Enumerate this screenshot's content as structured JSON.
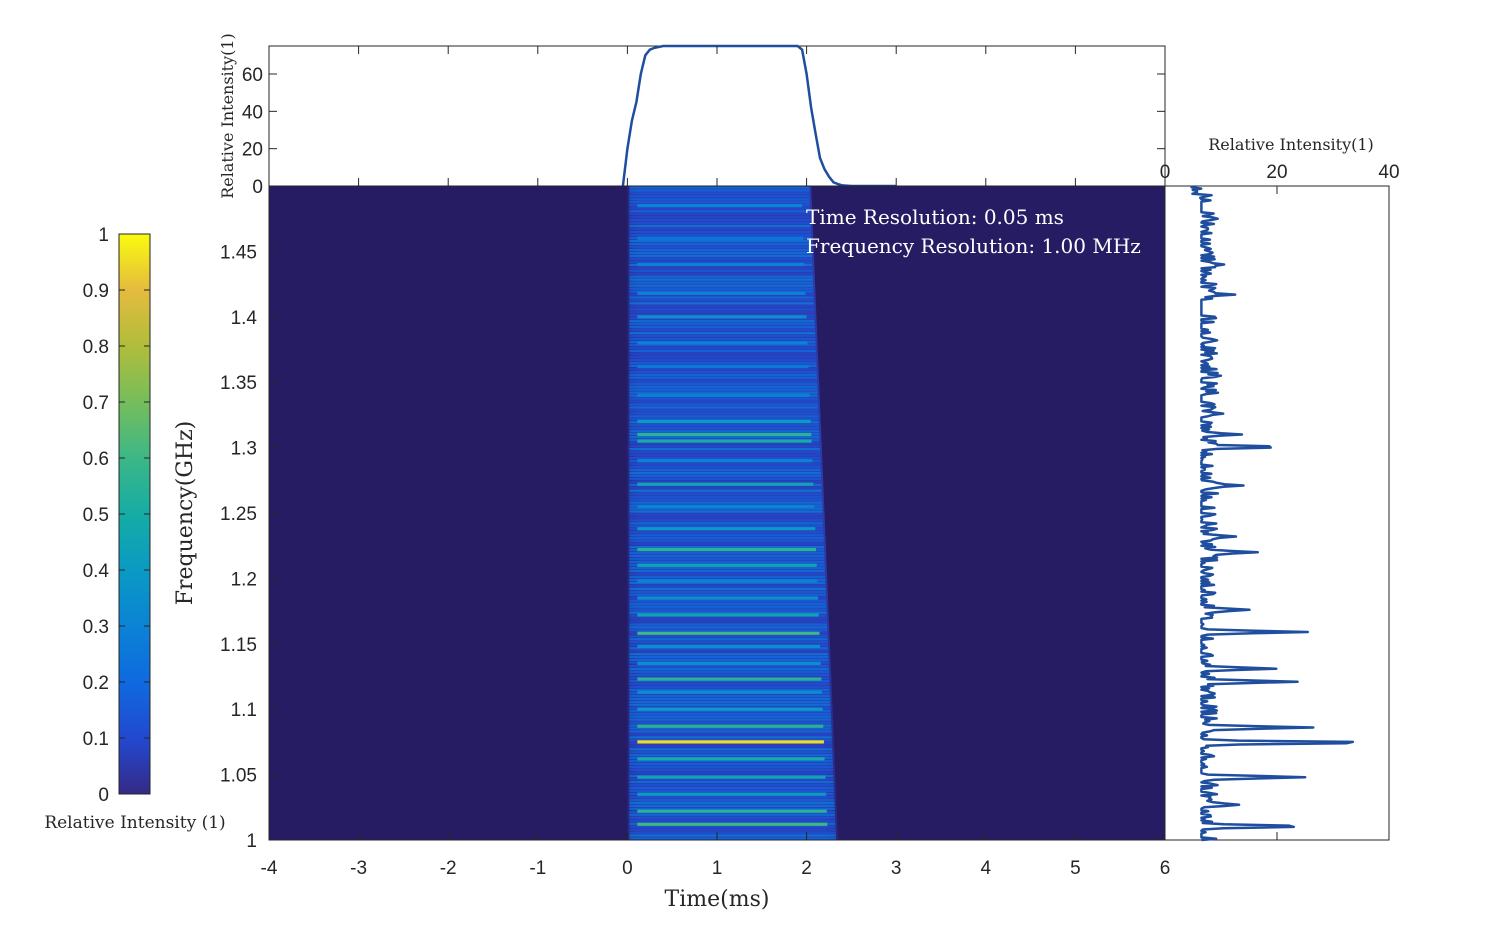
{
  "chart_data": [
    {
      "type": "heatmap",
      "name": "dynamic-spectrum",
      "xlabel": "Time(ms)",
      "ylabel": "Frequency(GHz)",
      "xlim": [
        -4,
        6
      ],
      "ylim": [
        1.0,
        1.5
      ],
      "x_ticks": [
        "-4",
        "-3",
        "-2",
        "-1",
        "0",
        "1",
        "2",
        "3",
        "4",
        "5",
        "6"
      ],
      "y_ticks": [
        "1",
        "1.05",
        "1.1",
        "1.15",
        "1.2",
        "1.25",
        "1.3",
        "1.35",
        "1.4",
        "1.45"
      ],
      "annotations": [
        "Time Resolution: 0.05 ms",
        "Frequency Resolution: 1.00 MHz"
      ],
      "colormap": "parula",
      "background_color": "#261c64",
      "burst_extent_ms": [
        0.0,
        2.4
      ],
      "emission": {
        "start_ms": 0.0,
        "end_ms_at_1.0GHz": 2.35,
        "end_ms_at_1.5GHz": 2.05,
        "bright_bands_GHz": [
          1.012,
          1.022,
          1.035,
          1.048,
          1.062,
          1.075,
          1.087,
          1.1,
          1.113,
          1.123,
          1.135,
          1.148,
          1.158,
          1.172,
          1.185,
          1.198,
          1.21,
          1.222,
          1.238,
          1.255,
          1.272,
          1.29,
          1.305,
          1.31,
          1.32,
          1.34,
          1.362,
          1.38,
          1.4,
          1.418,
          1.44,
          1.46,
          1.485
        ],
        "band_intensity": [
          0.6,
          0.55,
          0.4,
          0.45,
          0.5,
          0.95,
          0.55,
          0.4,
          0.35,
          0.55,
          0.35,
          0.35,
          0.6,
          0.45,
          0.35,
          0.3,
          0.45,
          0.55,
          0.4,
          0.3,
          0.45,
          0.3,
          0.5,
          0.55,
          0.4,
          0.3,
          0.25,
          0.3,
          0.35,
          0.3,
          0.3,
          0.25,
          0.3
        ]
      }
    },
    {
      "type": "line",
      "name": "time-profile",
      "ylabel": "Relative Intensity(1)",
      "xlim": [
        -4,
        6
      ],
      "ylim": [
        0,
        75
      ],
      "y_ticks": [
        "0",
        "20",
        "40",
        "60"
      ],
      "x": [
        -0.05,
        0.0,
        0.05,
        0.1,
        0.15,
        0.2,
        0.25,
        0.3,
        0.4,
        0.5,
        1.0,
        1.5,
        1.9,
        1.95,
        2.0,
        2.05,
        2.1,
        2.15,
        2.2,
        2.25,
        2.3,
        2.35,
        2.4,
        2.5,
        3.0
      ],
      "y": [
        0,
        20,
        35,
        45,
        60,
        70,
        73,
        74,
        75,
        75,
        75,
        75,
        75,
        73,
        60,
        42,
        28,
        15,
        9,
        5,
        2,
        1,
        0.3,
        0,
        0
      ]
    },
    {
      "type": "line",
      "name": "frequency-profile",
      "xlabel": "Relative Intensity(1)",
      "xlim": [
        0,
        40
      ],
      "ylim": [
        1.0,
        1.5
      ],
      "x_ticks": [
        "0",
        "20",
        "40"
      ],
      "baseline": 6.5,
      "peaks": [
        {
          "freq": 1.0105,
          "value": 26
        },
        {
          "freq": 1.027,
          "value": 14
        },
        {
          "freq": 1.048,
          "value": 26
        },
        {
          "freq": 1.0745,
          "value": 38
        },
        {
          "freq": 1.086,
          "value": 27
        },
        {
          "freq": 1.121,
          "value": 24
        },
        {
          "freq": 1.131,
          "value": 19
        },
        {
          "freq": 1.159,
          "value": 25
        },
        {
          "freq": 1.176,
          "value": 16
        },
        {
          "freq": 1.22,
          "value": 17
        },
        {
          "freq": 1.232,
          "value": 13
        },
        {
          "freq": 1.271,
          "value": 14
        },
        {
          "freq": 1.3005,
          "value": 21
        },
        {
          "freq": 1.31,
          "value": 13
        },
        {
          "freq": 1.326,
          "value": 10
        },
        {
          "freq": 1.355,
          "value": 9
        },
        {
          "freq": 1.382,
          "value": 10
        },
        {
          "freq": 1.417,
          "value": 12
        },
        {
          "freq": 1.44,
          "value": 11
        },
        {
          "freq": 1.475,
          "value": 10
        },
        {
          "freq": 1.493,
          "value": 9
        }
      ]
    },
    {
      "type": "colorbar",
      "name": "colorbar",
      "label": "Relative Intensity (1)",
      "ticks": [
        "0",
        "0.1",
        "0.2",
        "0.3",
        "0.4",
        "0.5",
        "0.6",
        "0.7",
        "0.8",
        "0.9",
        "1"
      ],
      "range": [
        0,
        1
      ]
    }
  ]
}
